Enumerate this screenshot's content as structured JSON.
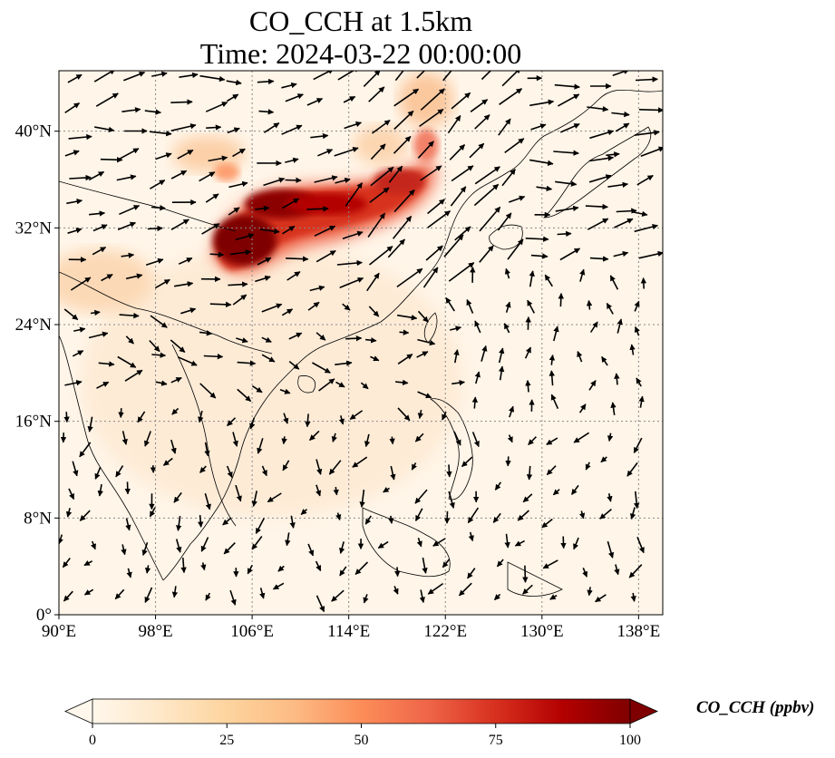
{
  "title": {
    "line1": "CO_CCH at 1.5km",
    "line2": "Time: 2024-03-22 00:00:00"
  },
  "map": {
    "projection": "PlateCarree",
    "lon_range": [
      90,
      140
    ],
    "lat_range": [
      0,
      45
    ],
    "lon_ticks": [
      {
        "value": 90,
        "label": "90°E"
      },
      {
        "value": 98,
        "label": "98°E"
      },
      {
        "value": 106,
        "label": "106°E"
      },
      {
        "value": 114,
        "label": "114°E"
      },
      {
        "value": 122,
        "label": "122°E"
      },
      {
        "value": 130,
        "label": "130°E"
      },
      {
        "value": 138,
        "label": "138°E"
      }
    ],
    "lat_ticks": [
      {
        "value": 0,
        "label": "0°"
      },
      {
        "value": 8,
        "label": "8°N"
      },
      {
        "value": 16,
        "label": "16°N"
      },
      {
        "value": 24,
        "label": "24°N"
      },
      {
        "value": 32,
        "label": "32°N"
      },
      {
        "value": 40,
        "label": "40°N"
      }
    ],
    "gridlines": true,
    "field_description": "CO concentration filled contour with wind vectors"
  },
  "colorbar": {
    "label": "CO_CCH (ppbv)",
    "min": 0,
    "max": 100,
    "extend": "both",
    "colormap": "OrRd",
    "ticks": [
      {
        "value": 0,
        "label": "0"
      },
      {
        "value": 25,
        "label": "25"
      },
      {
        "value": 50,
        "label": "50"
      },
      {
        "value": 75,
        "label": "75"
      },
      {
        "value": 100,
        "label": "100"
      }
    ],
    "colors": [
      "#fff7ec",
      "#fee8c8",
      "#fdd49e",
      "#fdbb84",
      "#fc8d59",
      "#ef6548",
      "#d7301f",
      "#b30000",
      "#7f0000"
    ]
  }
}
